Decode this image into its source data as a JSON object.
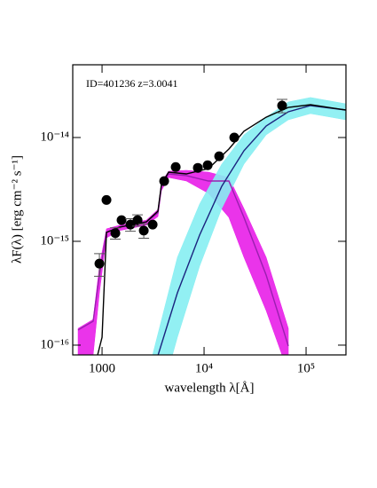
{
  "chart_data": {
    "type": "scatter",
    "annotation": "ID=401236 z=3.0041",
    "x_label": "wavelength λ[Å]",
    "y_label": "λF(λ) [erg cm⁻² s⁻¹]",
    "log_x": true,
    "log_y": true,
    "xlim": [
      516,
      246000
    ],
    "ylim": [
      8.05e-17,
      5.02e-14
    ],
    "xticks": [
      1000,
      {
        "value": 10000,
        "label": "10⁴"
      },
      {
        "value": 100000,
        "label": "10⁵"
      }
    ],
    "yticks": [
      {
        "value": 1e-16,
        "label": "10⁻¹⁶"
      },
      {
        "value": 1e-15,
        "label": "10⁻¹⁵"
      },
      {
        "value": 1e-14,
        "label": "10⁻¹⁴"
      }
    ],
    "models": [
      {
        "color": "#9a1fb0",
        "band_color": "#e81ee8",
        "x": [
          582,
          818,
          942,
          1105,
          1490,
          2720,
          3530,
          3820,
          4490,
          6700,
          11050,
          17500,
          24600,
          40600,
          67000
        ],
        "values": [
          1.4e-16,
          1.7e-16,
          4.73e-16,
          1.22e-15,
          1.37e-15,
          1.54e-15,
          1.88e-15,
          3.39e-15,
          4.46e-15,
          4.29e-15,
          3.81e-15,
          3.81e-15,
          1.7e-15,
          4.73e-16,
          9.8e-17
        ],
        "upper": [
          1.45e-16,
          1.77e-16,
          5.77e-16,
          1.32e-15,
          1.43e-15,
          1.6e-15,
          2.03e-15,
          3.74e-15,
          4.73e-15,
          4.83e-15,
          4.64e-15,
          4.12e-15,
          2.07e-15,
          7.02e-16,
          1.45e-16
        ],
        "lower": [
          8.05e-17,
          8.05e-17,
          3.19e-16,
          1.08e-15,
          1.27e-15,
          1.43e-15,
          1.73e-15,
          3.07e-15,
          4.12e-15,
          3.81e-15,
          2.9e-15,
          1.7e-15,
          7.02e-16,
          2.15e-16,
          5.43e-17
        ]
      },
      {
        "color": "#1a237e",
        "band_color": "#86eef2",
        "x": [
          3130,
          5480,
          9050,
          14900,
          24600,
          40600,
          67000,
          110500,
          246000
        ],
        "values": [
          5.43e-17,
          3.19e-16,
          1.15e-15,
          3.39e-15,
          7.45e-15,
          1.29e-14,
          1.77e-14,
          2.03e-14,
          1.84e-14
        ],
        "upper": [
          8.05e-17,
          7.02e-16,
          2.29e-15,
          5.54e-15,
          1.06e-14,
          1.57e-14,
          2.2e-14,
          2.43e-14,
          2.11e-14
        ],
        "lower": [
          1.67e-17,
          1.19e-16,
          5.77e-16,
          2.07e-15,
          5.54e-15,
          1.06e-14,
          1.48e-14,
          1.7e-14,
          1.48e-14
        ]
      },
      {
        "color": "#000000",
        "x": [
          905,
          1000,
          1105,
          1490,
          2720,
          3530,
          3820,
          4490,
          6700,
          11050,
          17500,
          24600,
          40600,
          67000,
          110500,
          246000
        ],
        "values": [
          8.05e-17,
          1.19e-16,
          1.22e-15,
          1.37e-15,
          1.54e-15,
          1.95e-15,
          3.52e-15,
          4.64e-15,
          4.46e-15,
          5.02e-15,
          7.74e-15,
          1.15e-14,
          1.57e-14,
          1.95e-14,
          2.07e-14,
          1.84e-14
        ]
      }
    ],
    "points": {
      "color": "#000000",
      "x": [
        942,
        1105,
        1350,
        1553,
        1897,
        2228,
        2565,
        3133,
        4062,
        5272,
        8690,
        10840,
        14060,
        19770,
        58200
      ],
      "values": [
        6.1e-16,
        2.5e-15,
        1.2e-15,
        1.6e-15,
        1.45e-15,
        1.6e-15,
        1.27e-15,
        1.45e-15,
        3.8e-15,
        5.2e-15,
        5.1e-15,
        5.4e-15,
        6.6e-15,
        1e-14,
        2.03e-14
      ],
      "errors": [
        1.5e-16,
        null,
        1.5e-16,
        null,
        2e-16,
        2e-16,
        2e-16,
        null,
        null,
        null,
        null,
        null,
        null,
        null,
        3e-15
      ]
    }
  }
}
